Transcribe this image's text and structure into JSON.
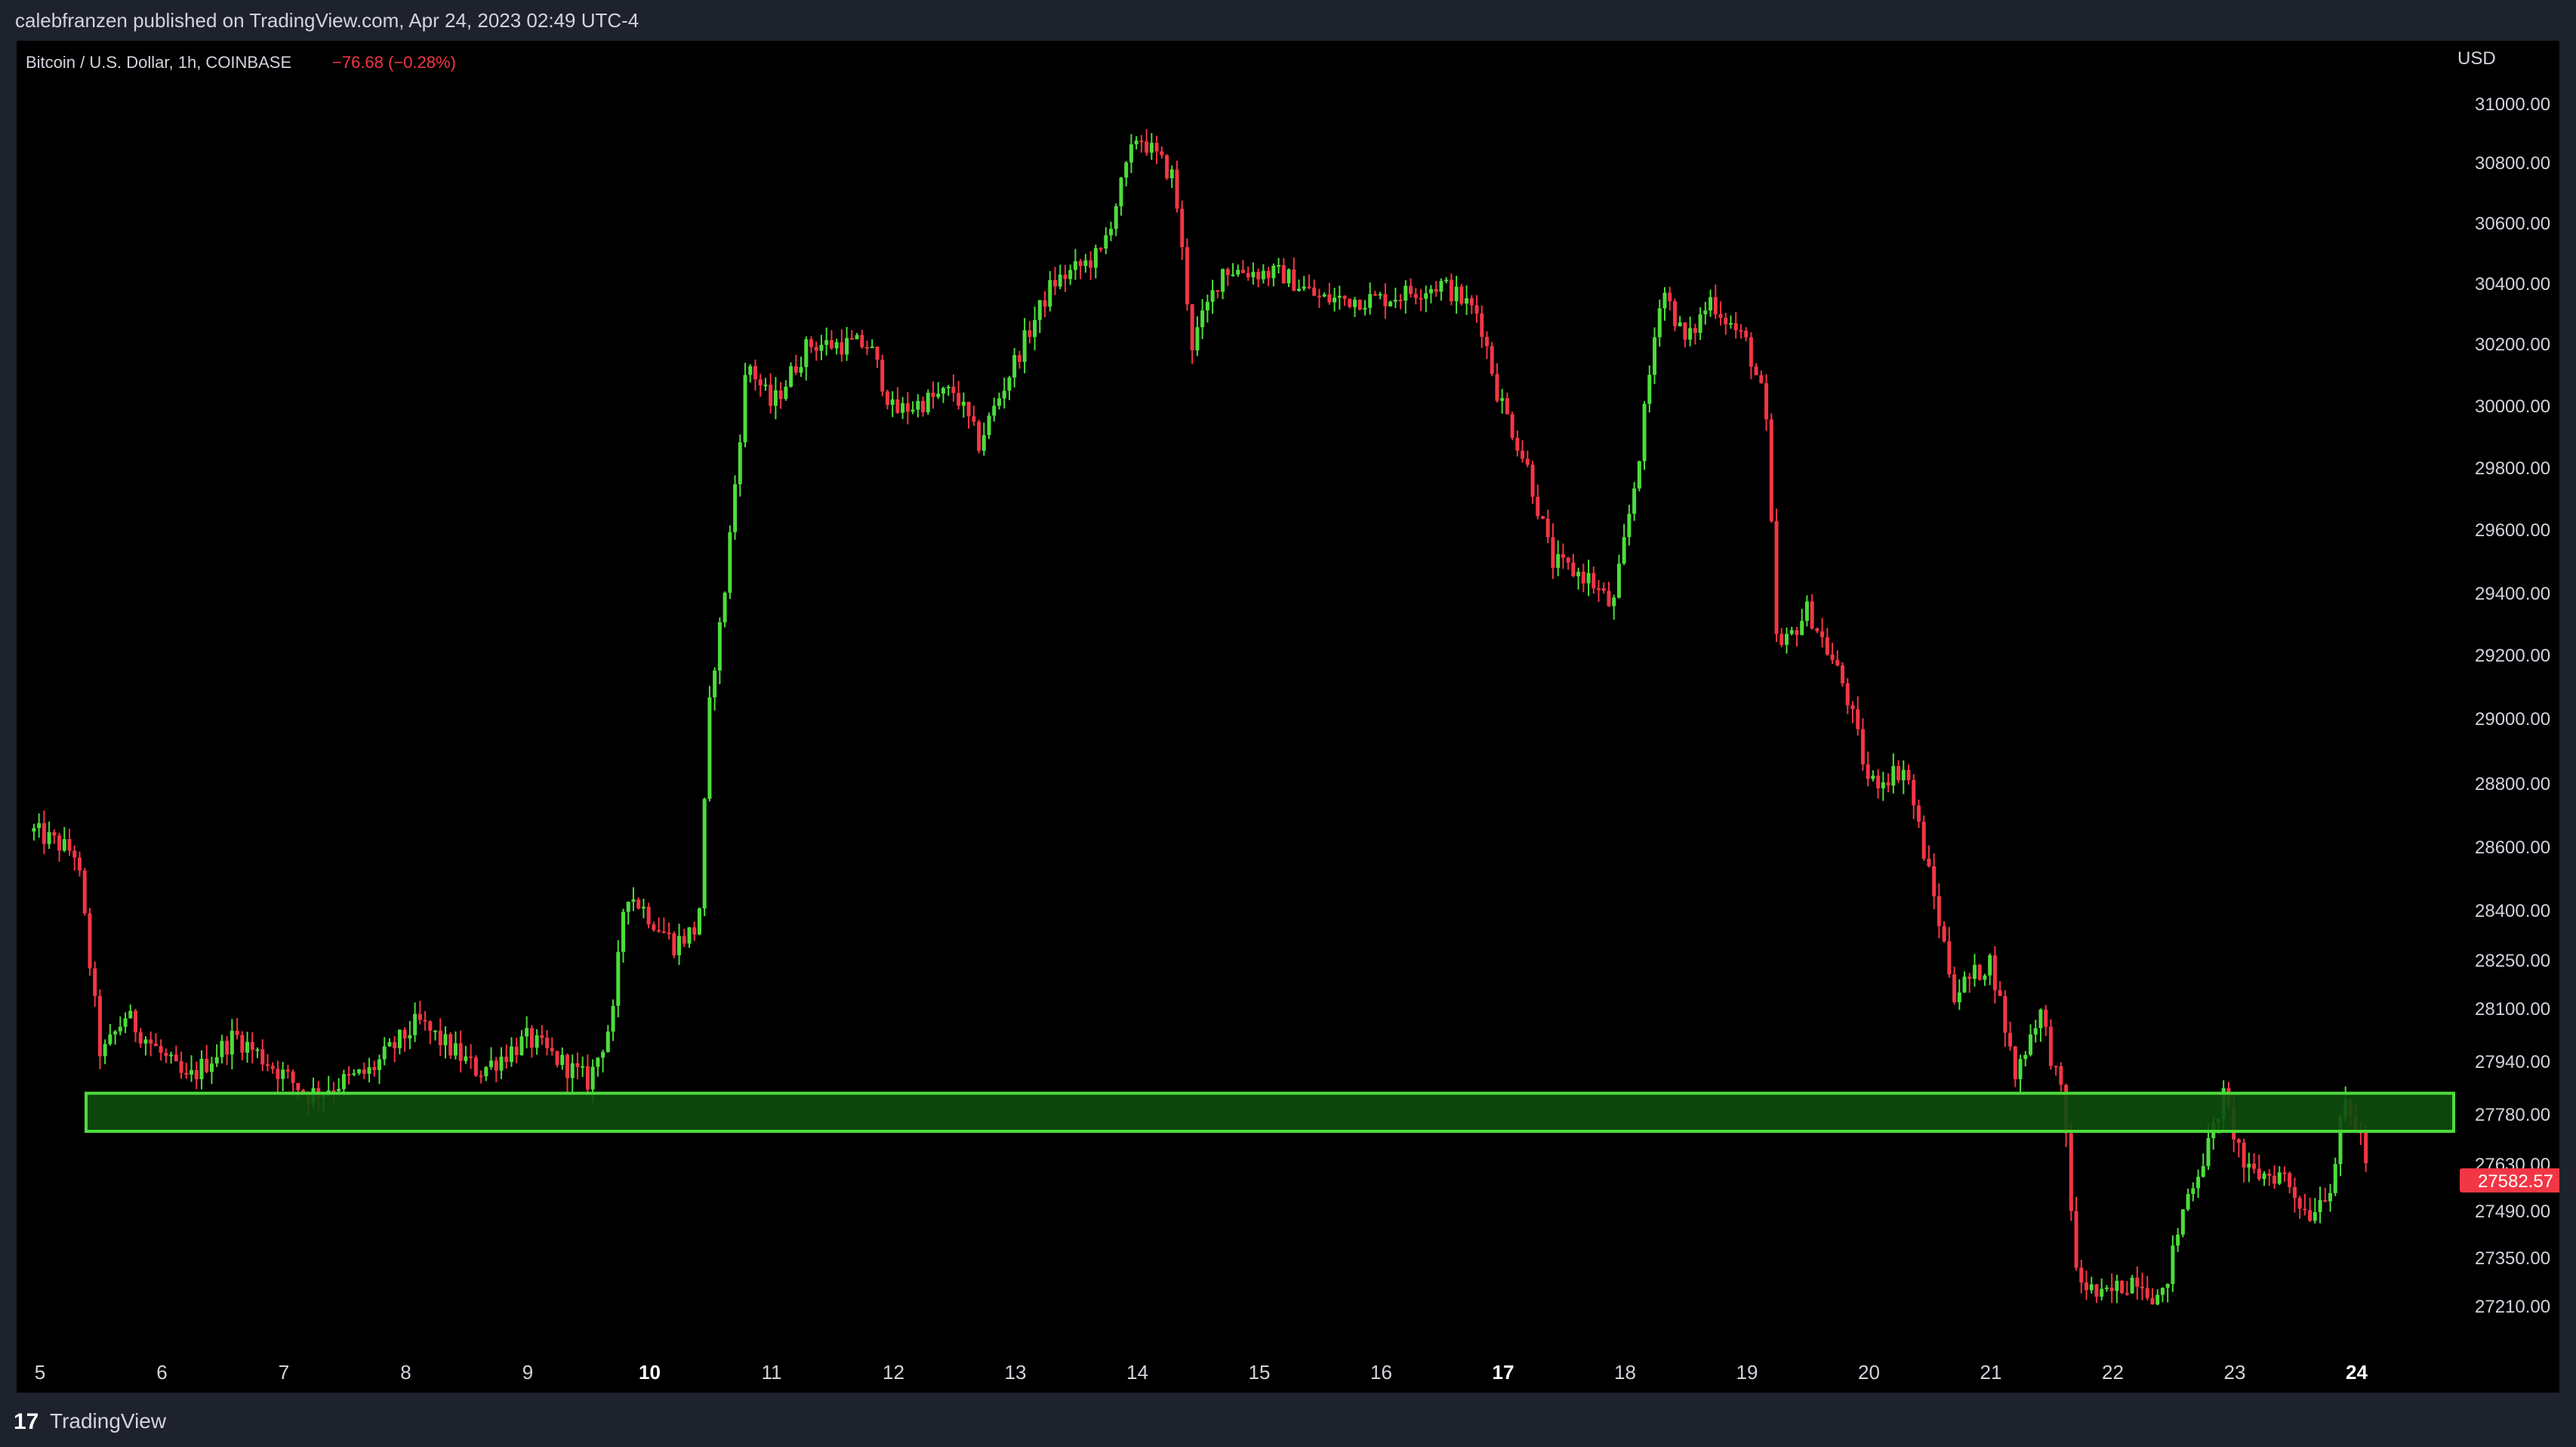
{
  "header": {
    "publisher_text": "calebfranzen published on TradingView.com, Apr 24, 2023 02:49 UTC-4"
  },
  "legend": {
    "symbol": "Bitcoin / U.S. Dollar, 1h, COINBASE",
    "change": "−76.68 (−0.28%)"
  },
  "axis": {
    "unit": "USD"
  },
  "footer": {
    "brand": "TradingView",
    "logo": "17"
  },
  "colors": {
    "up": "#4ddc3c",
    "down": "#f23645",
    "zone_fill": "#0d4e0d",
    "zone_border": "#4ddc3c",
    "background": "#000000",
    "text": "#d1d4dc"
  },
  "chart_data": {
    "type": "candlestick",
    "title": "Bitcoin / U.S. Dollar, 1h, COINBASE",
    "timeframe": "1h",
    "xlabel": "",
    "ylabel": "USD",
    "x_ticks": [
      "5",
      "6",
      "7",
      "8",
      "9",
      "10",
      "11",
      "12",
      "13",
      "14",
      "15",
      "16",
      "17",
      "18",
      "19",
      "20",
      "21",
      "22",
      "23",
      "24"
    ],
    "x_ticks_bold": [
      "10",
      "17",
      "24"
    ],
    "y_ticks": [
      27210,
      27350,
      27490,
      27630,
      27780,
      27940,
      28100,
      28250,
      28400,
      28600,
      28800,
      29000,
      29200,
      29400,
      29600,
      29800,
      30000,
      30200,
      30400,
      30600,
      30800,
      31000
    ],
    "y_tick_labels": [
      "27210.00",
      "27350.00",
      "27490.00",
      "27630.00",
      "27780.00",
      "27940.00",
      "28100.00",
      "28250.00",
      "28400.00",
      "28600.00",
      "28800.00",
      "29000.00",
      "29200.00",
      "29400.00",
      "29600.00",
      "29800.00",
      "30000.00",
      "30200.00",
      "30400.00",
      "30600.00",
      "30800.00",
      "31000.00"
    ],
    "last_price": 27582.57,
    "last_price_label": "27582.57",
    "support_zone": {
      "low": 27730,
      "high": 27845
    },
    "price_path": [
      {
        "day": 4.95,
        "price": 28650
      },
      {
        "day": 5.3,
        "price": 28580
      },
      {
        "day": 5.5,
        "price": 27950
      },
      {
        "day": 5.7,
        "price": 28080
      },
      {
        "day": 6.2,
        "price": 27880
      },
      {
        "day": 6.6,
        "price": 28020
      },
      {
        "day": 7.2,
        "price": 27840
      },
      {
        "day": 7.7,
        "price": 27910
      },
      {
        "day": 8.1,
        "price": 28060
      },
      {
        "day": 8.6,
        "price": 27910
      },
      {
        "day": 9.0,
        "price": 28010
      },
      {
        "day": 9.5,
        "price": 27880
      },
      {
        "day": 9.7,
        "price": 28080
      },
      {
        "day": 9.8,
        "price": 28470
      },
      {
        "day": 10.2,
        "price": 28300
      },
      {
        "day": 10.4,
        "price": 28350
      },
      {
        "day": 10.5,
        "price": 29100
      },
      {
        "day": 10.6,
        "price": 29350
      },
      {
        "day": 10.8,
        "price": 30150
      },
      {
        "day": 11.0,
        "price": 30000
      },
      {
        "day": 11.3,
        "price": 30200
      },
      {
        "day": 11.8,
        "price": 30200
      },
      {
        "day": 12.0,
        "price": 29980
      },
      {
        "day": 12.5,
        "price": 30050
      },
      {
        "day": 12.7,
        "price": 29880
      },
      {
        "day": 13.0,
        "price": 30150
      },
      {
        "day": 13.3,
        "price": 30400
      },
      {
        "day": 13.7,
        "price": 30500
      },
      {
        "day": 14.0,
        "price": 30900
      },
      {
        "day": 14.3,
        "price": 30750
      },
      {
        "day": 14.45,
        "price": 30200
      },
      {
        "day": 14.7,
        "price": 30450
      },
      {
        "day": 15.2,
        "price": 30430
      },
      {
        "day": 15.5,
        "price": 30350
      },
      {
        "day": 16.0,
        "price": 30350
      },
      {
        "day": 16.5,
        "price": 30400
      },
      {
        "day": 16.8,
        "price": 30300
      },
      {
        "day": 16.95,
        "price": 30050
      },
      {
        "day": 17.2,
        "price": 29800
      },
      {
        "day": 17.4,
        "price": 29500
      },
      {
        "day": 17.7,
        "price": 29450
      },
      {
        "day": 17.9,
        "price": 29350
      },
      {
        "day": 18.1,
        "price": 29800
      },
      {
        "day": 18.3,
        "price": 30400
      },
      {
        "day": 18.5,
        "price": 30200
      },
      {
        "day": 18.7,
        "price": 30350
      },
      {
        "day": 19.0,
        "price": 30200
      },
      {
        "day": 19.15,
        "price": 30000
      },
      {
        "day": 19.25,
        "price": 29200
      },
      {
        "day": 19.5,
        "price": 29350
      },
      {
        "day": 19.8,
        "price": 29100
      },
      {
        "day": 20.0,
        "price": 28800
      },
      {
        "day": 20.3,
        "price": 28850
      },
      {
        "day": 20.5,
        "price": 28500
      },
      {
        "day": 20.7,
        "price": 28150
      },
      {
        "day": 21.0,
        "price": 28250
      },
      {
        "day": 21.2,
        "price": 27900
      },
      {
        "day": 21.4,
        "price": 28100
      },
      {
        "day": 21.6,
        "price": 27800
      },
      {
        "day": 21.7,
        "price": 27300
      },
      {
        "day": 21.9,
        "price": 27230
      },
      {
        "day": 22.2,
        "price": 27300
      },
      {
        "day": 22.4,
        "price": 27220
      },
      {
        "day": 22.6,
        "price": 27530
      },
      {
        "day": 22.8,
        "price": 27700
      },
      {
        "day": 22.9,
        "price": 27840
      },
      {
        "day": 23.1,
        "price": 27600
      },
      {
        "day": 23.4,
        "price": 27600
      },
      {
        "day": 23.6,
        "price": 27480
      },
      {
        "day": 23.8,
        "price": 27580
      },
      {
        "day": 23.9,
        "price": 27820
      },
      {
        "day": 24.05,
        "price": 27700
      },
      {
        "day": 24.1,
        "price": 27582.57
      }
    ]
  }
}
